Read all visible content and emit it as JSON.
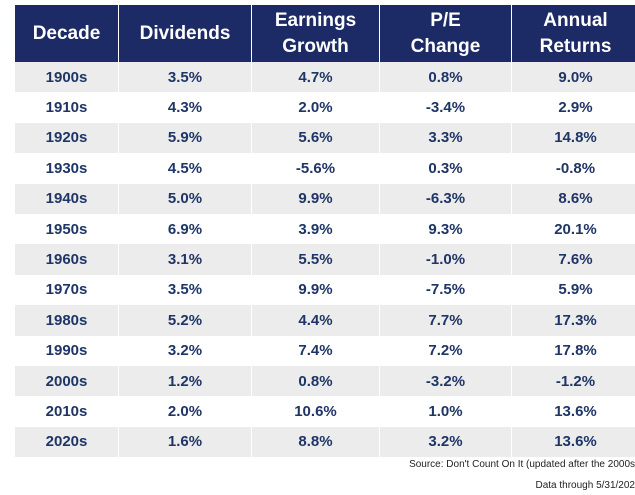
{
  "table": {
    "header": [
      [
        "Decade"
      ],
      [
        "Dividends"
      ],
      [
        "Earnings",
        "Growth"
      ],
      [
        "P/E",
        "Change"
      ],
      [
        "Annual",
        "Returns"
      ]
    ],
    "rows": [
      [
        "1900s",
        "3.5%",
        "4.7%",
        "0.8%",
        "9.0%"
      ],
      [
        "1910s",
        "4.3%",
        "2.0%",
        "-3.4%",
        "2.9%"
      ],
      [
        "1920s",
        "5.9%",
        "5.6%",
        "3.3%",
        "14.8%"
      ],
      [
        "1930s",
        "4.5%",
        "-5.6%",
        "0.3%",
        "-0.8%"
      ],
      [
        "1940s",
        "5.0%",
        "9.9%",
        "-6.3%",
        "8.6%"
      ],
      [
        "1950s",
        "6.9%",
        "3.9%",
        "9.3%",
        "20.1%"
      ],
      [
        "1960s",
        "3.1%",
        "5.5%",
        "-1.0%",
        "7.6%"
      ],
      [
        "1970s",
        "3.5%",
        "9.9%",
        "-7.5%",
        "5.9%"
      ],
      [
        "1980s",
        "5.2%",
        "4.4%",
        "7.7%",
        "17.3%"
      ],
      [
        "1990s",
        "3.2%",
        "7.4%",
        "7.2%",
        "17.8%"
      ],
      [
        "2000s",
        "1.2%",
        "0.8%",
        "-3.2%",
        "-1.2%"
      ],
      [
        "2010s",
        "2.0%",
        "10.6%",
        "1.0%",
        "13.6%"
      ],
      [
        "2020s",
        "1.6%",
        "8.8%",
        "3.2%",
        "13.6%"
      ]
    ]
  },
  "footer": {
    "source": "Source: Don't Count On It (updated after the 2000s",
    "date": "Data through 5/31/202"
  }
}
